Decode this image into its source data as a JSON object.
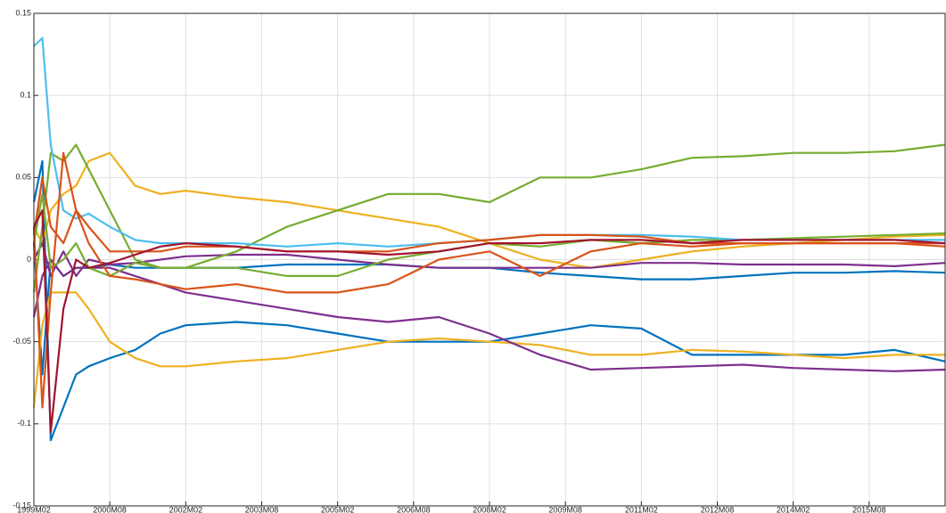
{
  "chart_data": {
    "type": "line",
    "x": [
      "1999M02",
      "1999M04",
      "1999M06",
      "1999M09",
      "1999M12",
      "2000M03",
      "2000M08",
      "2001M02",
      "2001M08",
      "2002M02",
      "2003M02",
      "2004M02",
      "2005M02",
      "2006M02",
      "2007M02",
      "2008M02",
      "2009M02",
      "2010M02",
      "2011M02",
      "2012M02",
      "2013M02",
      "2014M02",
      "2015M02",
      "2016M02",
      "2017M02"
    ],
    "xlim": [
      "1999M02",
      "2017M02"
    ],
    "xticks": [
      "1999M02",
      "2000M08",
      "2002M02",
      "2003M08",
      "2005M02",
      "2006M08",
      "2008M02",
      "2009M08",
      "2011M02",
      "2012M08",
      "2014M02",
      "2015M08"
    ],
    "ylim": [
      -0.15,
      0.15
    ],
    "yticks": [
      -0.15,
      -0.1,
      -0.05,
      0,
      0.05,
      0.1,
      0.15
    ],
    "grid": true,
    "series": [
      {
        "color": "#0072BD",
        "values": [
          0.035,
          0.06,
          -0.11,
          -0.09,
          -0.07,
          -0.065,
          -0.06,
          -0.055,
          -0.045,
          -0.04,
          -0.038,
          -0.04,
          -0.045,
          -0.05,
          -0.05,
          -0.05,
          -0.045,
          -0.04,
          -0.042,
          -0.058,
          -0.058,
          -0.058,
          -0.058,
          -0.055,
          -0.062
        ]
      },
      {
        "color": "#0072BD",
        "values": [
          0.01,
          -0.07,
          0.0,
          -0.01,
          -0.005,
          -0.005,
          -0.003,
          -0.005,
          -0.005,
          -0.005,
          -0.005,
          -0.003,
          -0.003,
          -0.003,
          -0.005,
          -0.005,
          -0.008,
          -0.01,
          -0.012,
          -0.012,
          -0.01,
          -0.008,
          -0.008,
          -0.007,
          -0.008
        ]
      },
      {
        "color": "#EDB120",
        "values": [
          -0.09,
          -0.04,
          -0.02,
          -0.02,
          -0.02,
          -0.03,
          -0.05,
          -0.06,
          -0.065,
          -0.065,
          -0.062,
          -0.06,
          -0.055,
          -0.05,
          -0.048,
          -0.05,
          -0.052,
          -0.058,
          -0.058,
          -0.055,
          -0.056,
          -0.058,
          -0.06,
          -0.058,
          -0.058
        ]
      },
      {
        "color": "#EDB120",
        "values": [
          0.02,
          0.01,
          0.03,
          0.04,
          0.045,
          0.06,
          0.065,
          0.045,
          0.04,
          0.042,
          0.038,
          0.035,
          0.03,
          0.025,
          0.02,
          0.01,
          0.0,
          -0.005,
          0.0,
          0.005,
          0.008,
          0.01,
          0.012,
          0.014,
          0.015
        ]
      },
      {
        "color": "#7E2F8E",
        "values": [
          -0.035,
          -0.01,
          0.0,
          -0.01,
          -0.005,
          -0.005,
          -0.005,
          -0.01,
          -0.015,
          -0.02,
          -0.025,
          -0.03,
          -0.035,
          -0.038,
          -0.035,
          -0.045,
          -0.058,
          -0.067,
          -0.066,
          -0.065,
          -0.064,
          -0.066,
          -0.067,
          -0.068,
          -0.067
        ]
      },
      {
        "color": "#7E2F8E",
        "values": [
          0.0,
          0.01,
          -0.01,
          0.005,
          -0.01,
          0.0,
          -0.003,
          -0.002,
          0.0,
          0.002,
          0.003,
          0.003,
          0.0,
          -0.003,
          -0.005,
          -0.005,
          -0.005,
          -0.005,
          -0.002,
          -0.002,
          -0.003,
          -0.003,
          -0.003,
          -0.004,
          -0.002
        ]
      },
      {
        "color": "#77AC30",
        "values": [
          -0.02,
          0.02,
          0.065,
          0.06,
          0.07,
          0.055,
          0.03,
          0.0,
          -0.005,
          -0.005,
          0.005,
          0.02,
          0.03,
          0.04,
          0.04,
          0.035,
          0.05,
          0.05,
          0.055,
          0.062,
          0.063,
          0.065,
          0.065,
          0.066,
          0.07
        ]
      },
      {
        "color": "#77AC30",
        "values": [
          0.01,
          0.04,
          -0.005,
          0.0,
          0.01,
          -0.005,
          -0.01,
          -0.002,
          -0.005,
          -0.005,
          -0.005,
          -0.01,
          -0.01,
          0.0,
          0.005,
          0.01,
          0.008,
          0.012,
          0.01,
          0.012,
          0.012,
          0.013,
          0.014,
          0.015,
          0.016
        ]
      },
      {
        "color": "#4DBEEE",
        "values": [
          0.13,
          0.135,
          0.07,
          0.03,
          0.025,
          0.028,
          0.02,
          0.012,
          0.01,
          0.01,
          0.01,
          0.008,
          0.01,
          0.008,
          0.01,
          0.012,
          0.015,
          0.015,
          0.015,
          0.014,
          0.012,
          0.012,
          0.012,
          0.012,
          0.012
        ]
      },
      {
        "color": "#D95319",
        "values": [
          0.02,
          -0.09,
          -0.02,
          0.065,
          0.03,
          0.01,
          -0.01,
          -0.012,
          -0.015,
          -0.018,
          -0.015,
          -0.02,
          -0.02,
          -0.015,
          0.0,
          0.005,
          -0.01,
          0.005,
          0.01,
          0.008,
          0.01,
          0.01,
          0.01,
          0.01,
          0.008
        ]
      },
      {
        "color": "#D95319",
        "values": [
          0.015,
          0.05,
          0.02,
          0.01,
          0.03,
          0.02,
          0.005,
          0.005,
          0.005,
          0.008,
          0.008,
          0.005,
          0.005,
          0.005,
          0.01,
          0.012,
          0.015,
          0.015,
          0.014,
          0.01,
          0.01,
          0.01,
          0.01,
          0.01,
          0.01
        ]
      },
      {
        "color": "#A2142F",
        "values": [
          0.02,
          0.03,
          -0.105,
          -0.03,
          0.0,
          -0.005,
          -0.002,
          0.003,
          0.008,
          0.01,
          0.008,
          0.005,
          0.005,
          0.003,
          0.005,
          0.01,
          0.01,
          0.012,
          0.012,
          0.01,
          0.012,
          0.012,
          0.012,
          0.012,
          0.01
        ]
      }
    ]
  }
}
